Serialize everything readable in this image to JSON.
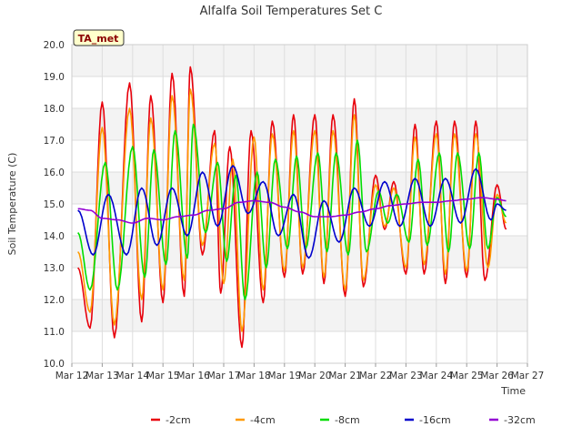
{
  "chart_data": {
    "type": "line",
    "title": "Alfalfa Soil Temperatures Set C",
    "xlabel": "Time",
    "ylabel": "Soil Temperature (C)",
    "ylim": [
      10.0,
      20.0
    ],
    "xlim": [
      12,
      27
    ],
    "yticks": [
      "10.0",
      "11.0",
      "12.0",
      "13.0",
      "14.0",
      "15.0",
      "16.0",
      "17.0",
      "18.0",
      "19.0",
      "20.0"
    ],
    "xticks": [
      "Mar 12",
      "Mar 13",
      "Mar 14",
      "Mar 15",
      "Mar 16",
      "Mar 17",
      "Mar 18",
      "Mar 19",
      "Mar 20",
      "Mar 21",
      "Mar 22",
      "Mar 23",
      "Mar 24",
      "Mar 25",
      "Mar 26",
      "Mar 27"
    ],
    "badge": "TA_met",
    "grid": true,
    "legend_position": "bottom",
    "series": [
      {
        "name": "-2cm",
        "color": "#e8000b",
        "x": [
          12.2,
          12.6,
          13.0,
          13.4,
          13.9,
          14.3,
          14.6,
          15.0,
          15.3,
          15.7,
          15.9,
          16.3,
          16.7,
          16.9,
          17.2,
          17.6,
          17.9,
          18.3,
          18.6,
          19.0,
          19.3,
          19.6,
          20.0,
          20.3,
          20.6,
          21.0,
          21.3,
          21.6,
          22.0,
          22.3,
          22.6,
          23.0,
          23.3,
          23.6,
          24.0,
          24.3,
          24.6,
          25.0,
          25.3,
          25.6,
          26.0,
          26.3
        ],
        "y": [
          13.0,
          11.1,
          18.2,
          10.8,
          18.8,
          11.3,
          18.4,
          11.9,
          19.1,
          12.1,
          19.3,
          13.4,
          17.3,
          12.2,
          16.8,
          10.5,
          17.3,
          11.9,
          17.6,
          12.7,
          17.8,
          12.8,
          17.8,
          12.5,
          17.8,
          12.1,
          18.3,
          12.4,
          15.9,
          14.2,
          15.7,
          12.8,
          17.5,
          12.8,
          17.6,
          12.5,
          17.6,
          12.7,
          17.6,
          12.6,
          15.6,
          14.2
        ]
      },
      {
        "name": "-4cm",
        "color": "#ff9a00",
        "x": [
          12.2,
          12.6,
          13.0,
          13.4,
          13.9,
          14.3,
          14.6,
          15.0,
          15.3,
          15.7,
          15.9,
          16.3,
          16.7,
          17.0,
          17.3,
          17.6,
          18.0,
          18.3,
          18.6,
          19.0,
          19.3,
          19.6,
          20.0,
          20.3,
          20.6,
          21.0,
          21.3,
          21.6,
          22.0,
          22.3,
          22.6,
          23.0,
          23.3,
          23.6,
          24.0,
          24.3,
          24.6,
          25.0,
          25.3,
          25.7,
          26.0,
          26.3
        ],
        "y": [
          13.5,
          11.6,
          17.4,
          11.2,
          18.0,
          12.0,
          17.7,
          12.3,
          18.4,
          12.6,
          18.6,
          13.7,
          16.9,
          12.5,
          16.4,
          11.0,
          17.1,
          12.3,
          17.2,
          12.9,
          17.3,
          13.0,
          17.3,
          12.7,
          17.3,
          12.3,
          17.8,
          12.6,
          15.6,
          14.3,
          15.5,
          13.0,
          17.1,
          13.1,
          17.2,
          12.8,
          17.2,
          12.9,
          17.2,
          13.0,
          15.3,
          14.4
        ]
      },
      {
        "name": "-8cm",
        "color": "#00dd00",
        "x": [
          12.2,
          12.6,
          13.1,
          13.5,
          14.0,
          14.4,
          14.7,
          15.1,
          15.4,
          15.8,
          16.0,
          16.4,
          16.8,
          17.1,
          17.4,
          17.7,
          18.1,
          18.4,
          18.7,
          19.1,
          19.4,
          19.7,
          20.1,
          20.4,
          20.7,
          21.1,
          21.4,
          21.7,
          22.1,
          22.4,
          22.7,
          23.1,
          23.4,
          23.7,
          24.1,
          24.4,
          24.7,
          25.1,
          25.4,
          25.7,
          26.0,
          26.3
        ],
        "y": [
          14.1,
          12.3,
          16.3,
          12.3,
          16.8,
          12.7,
          16.7,
          13.1,
          17.3,
          13.3,
          17.5,
          14.1,
          16.3,
          13.2,
          15.9,
          12.0,
          16.0,
          13.0,
          16.4,
          13.6,
          16.5,
          13.6,
          16.6,
          13.5,
          16.6,
          13.4,
          17.0,
          13.5,
          15.4,
          14.4,
          15.3,
          13.8,
          16.4,
          13.7,
          16.6,
          13.5,
          16.6,
          13.6,
          16.6,
          13.6,
          15.2,
          14.6
        ]
      },
      {
        "name": "-16cm",
        "color": "#0000cc",
        "x": [
          12.2,
          12.7,
          13.2,
          13.8,
          14.3,
          14.8,
          15.3,
          15.8,
          16.3,
          16.8,
          17.3,
          17.8,
          18.3,
          18.8,
          19.3,
          19.8,
          20.3,
          20.8,
          21.3,
          21.8,
          22.3,
          22.8,
          23.3,
          23.8,
          24.3,
          24.8,
          25.3,
          25.8,
          26.0,
          26.3
        ],
        "y": [
          14.8,
          13.4,
          15.3,
          13.4,
          15.5,
          13.7,
          15.5,
          14.0,
          16.0,
          14.3,
          16.2,
          14.7,
          15.7,
          14.0,
          15.3,
          13.3,
          15.1,
          13.8,
          15.5,
          14.3,
          15.7,
          14.3,
          15.8,
          14.3,
          15.8,
          14.4,
          16.1,
          14.5,
          15.0,
          14.8
        ]
      },
      {
        "name": "-32cm",
        "color": "#9400d3",
        "x": [
          12.2,
          12.6,
          13.0,
          13.5,
          14.0,
          14.5,
          15.0,
          15.5,
          16.0,
          16.5,
          17.0,
          17.5,
          18.0,
          18.5,
          19.0,
          19.5,
          20.0,
          20.5,
          21.0,
          21.5,
          22.0,
          22.5,
          23.0,
          23.5,
          24.0,
          24.5,
          25.0,
          25.5,
          26.0,
          26.3
        ],
        "y": [
          14.85,
          14.8,
          14.55,
          14.5,
          14.4,
          14.55,
          14.5,
          14.6,
          14.65,
          14.8,
          14.85,
          15.05,
          15.1,
          15.05,
          14.9,
          14.75,
          14.6,
          14.6,
          14.65,
          14.75,
          14.85,
          14.95,
          15.0,
          15.05,
          15.05,
          15.1,
          15.15,
          15.2,
          15.15,
          15.1
        ]
      }
    ]
  }
}
